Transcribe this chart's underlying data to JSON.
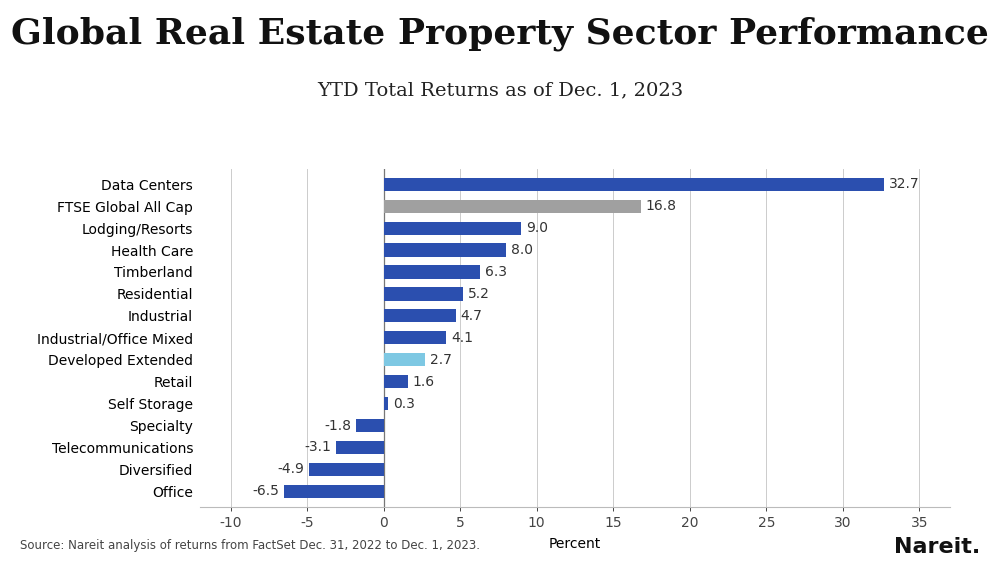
{
  "title": "Global Real Estate Property Sector Performance",
  "subtitle": "YTD Total Returns as of Dec. 1, 2023",
  "categories": [
    "Data Centers",
    "FTSE Global All Cap",
    "Lodging/Resorts",
    "Health Care",
    "Timberland",
    "Residential",
    "Industrial",
    "Industrial/Office Mixed",
    "Developed Extended",
    "Retail",
    "Self Storage",
    "Specialty",
    "Telecommunications",
    "Diversified",
    "Office"
  ],
  "values": [
    32.7,
    16.8,
    9.0,
    8.0,
    6.3,
    5.2,
    4.7,
    4.1,
    2.7,
    1.6,
    0.3,
    -1.8,
    -3.1,
    -4.9,
    -6.5
  ],
  "colors": [
    "#2b4faf",
    "#a0a0a0",
    "#2b4faf",
    "#2b4faf",
    "#2b4faf",
    "#2b4faf",
    "#2b4faf",
    "#2b4faf",
    "#7ec8e3",
    "#2b4faf",
    "#2b4faf",
    "#2b4faf",
    "#2b4faf",
    "#2b4faf",
    "#2b4faf"
  ],
  "xlim": [
    -12,
    37
  ],
  "xticks": [
    -10,
    -5,
    0,
    5,
    10,
    15,
    20,
    25,
    30,
    35
  ],
  "xlabel": "Percent",
  "source_text": "Source: Nareit analysis of returns from FactSet Dec. 31, 2022 to Dec. 1, 2023.",
  "nareit_text": "Nareit.",
  "background_color": "#ffffff",
  "title_fontsize": 26,
  "subtitle_fontsize": 14,
  "label_fontsize": 10,
  "tick_fontsize": 10,
  "bar_height": 0.6
}
